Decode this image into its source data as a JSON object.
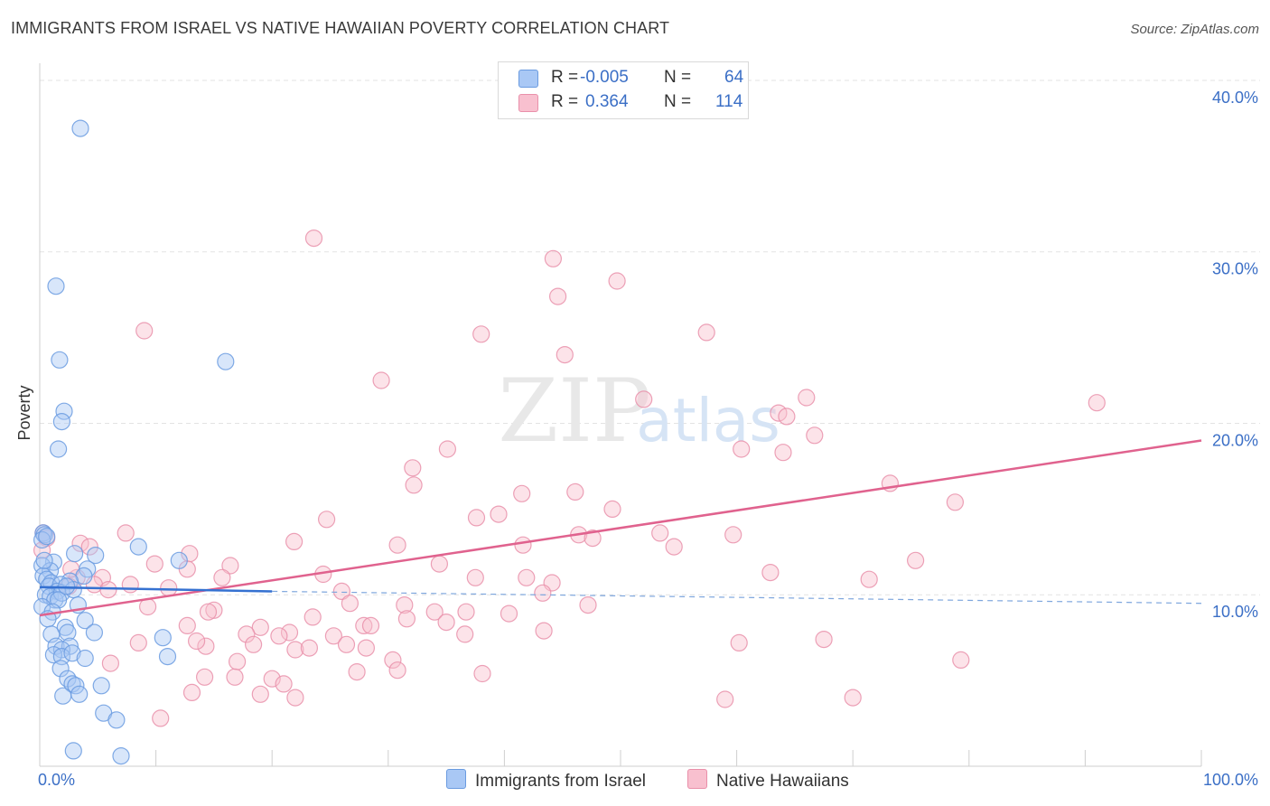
{
  "title": "IMMIGRANTS FROM ISRAEL VS NATIVE HAWAIIAN POVERTY CORRELATION CHART",
  "source": "Source: ZipAtlas.com",
  "watermark": {
    "zip": "ZIP",
    "atlas": "atlas"
  },
  "legend": {
    "rows": [
      {
        "r_label": "R = ",
        "r_value": "-0.005",
        "n_label": "N = ",
        "n_value": "64",
        "color": "#a9c8f5",
        "border": "#6a9be0"
      },
      {
        "r_label": "R = ",
        "r_value": " 0.364",
        "n_label": "N = ",
        "n_value": "114",
        "color": "#f8c0cf",
        "border": "#e990aa"
      }
    ]
  },
  "bottom_legend": [
    {
      "label": "Immigrants from Israel",
      "color": "#a9c8f5",
      "border": "#6a9be0"
    },
    {
      "label": "Native Hawaiians",
      "color": "#f8c0cf",
      "border": "#e990aa"
    }
  ],
  "chart_data": {
    "type": "scatter",
    "title": "IMMIGRANTS FROM ISRAEL VS NATIVE HAWAIIAN POVERTY CORRELATION CHART",
    "ylabel": "Poverty",
    "xlabel": "",
    "xlim": [
      0,
      100
    ],
    "ylim": [
      0,
      41
    ],
    "x_tick_labels": [
      "0.0%",
      "100.0%"
    ],
    "y_ticks": [
      10,
      20,
      30,
      40
    ],
    "y_tick_labels": [
      "10.0%",
      "20.0%",
      "30.0%",
      "40.0%"
    ],
    "grid": "horizontal-dashed",
    "series": [
      {
        "name": "Immigrants from Israel",
        "color": "#6a9be0",
        "fill": "#a9c8f5",
        "R": -0.005,
        "N": 64,
        "trend": {
          "x": [
            0,
            20
          ],
          "y": [
            10.45,
            10.2
          ],
          "dashed_to": [
            100,
            9.5
          ]
        },
        "points": [
          [
            3.5,
            37.2
          ],
          [
            1.4,
            28.0
          ],
          [
            1.7,
            23.7
          ],
          [
            16.0,
            23.6
          ],
          [
            2.1,
            20.7
          ],
          [
            1.9,
            20.1
          ],
          [
            1.6,
            18.5
          ],
          [
            0.3,
            13.6
          ],
          [
            0.4,
            13.5
          ],
          [
            0.2,
            13.2
          ],
          [
            0.6,
            13.4
          ],
          [
            8.5,
            12.8
          ],
          [
            3.0,
            12.4
          ],
          [
            4.8,
            12.3
          ],
          [
            12.0,
            12.0
          ],
          [
            1.2,
            11.9
          ],
          [
            0.2,
            11.7
          ],
          [
            0.9,
            11.4
          ],
          [
            0.3,
            11.1
          ],
          [
            4.1,
            11.5
          ],
          [
            0.6,
            10.9
          ],
          [
            3.8,
            11.1
          ],
          [
            1.0,
            10.7
          ],
          [
            0.8,
            10.5
          ],
          [
            2.6,
            10.8
          ],
          [
            1.8,
            10.6
          ],
          [
            1.5,
            10.2
          ],
          [
            0.5,
            10.0
          ],
          [
            0.9,
            9.9
          ],
          [
            1.3,
            9.7
          ],
          [
            1.9,
            10.1
          ],
          [
            2.9,
            10.3
          ],
          [
            1.6,
            9.7
          ],
          [
            0.2,
            9.3
          ],
          [
            1.1,
            9.0
          ],
          [
            3.3,
            9.4
          ],
          [
            0.7,
            8.6
          ],
          [
            3.9,
            8.5
          ],
          [
            2.2,
            8.1
          ],
          [
            2.4,
            7.8
          ],
          [
            4.7,
            7.8
          ],
          [
            1.0,
            7.7
          ],
          [
            10.6,
            7.5
          ],
          [
            1.4,
            7.0
          ],
          [
            2.6,
            7.0
          ],
          [
            1.9,
            6.8
          ],
          [
            1.2,
            6.5
          ],
          [
            1.9,
            6.4
          ],
          [
            2.8,
            6.6
          ],
          [
            3.9,
            6.3
          ],
          [
            11.0,
            6.4
          ],
          [
            1.8,
            5.7
          ],
          [
            2.4,
            5.1
          ],
          [
            2.8,
            4.8
          ],
          [
            3.1,
            4.7
          ],
          [
            5.3,
            4.7
          ],
          [
            3.4,
            4.2
          ],
          [
            2.0,
            4.1
          ],
          [
            5.5,
            3.1
          ],
          [
            6.6,
            2.7
          ],
          [
            2.9,
            0.9
          ],
          [
            7.0,
            0.6
          ],
          [
            2.3,
            10.5
          ],
          [
            0.4,
            12.0
          ]
        ]
      },
      {
        "name": "Native Hawaiians",
        "color": "#e990aa",
        "fill": "#f8c0cf",
        "R": 0.364,
        "N": 114,
        "trend": {
          "x": [
            0,
            100
          ],
          "y": [
            8.8,
            19.0
          ]
        },
        "points": [
          [
            23.6,
            30.8
          ],
          [
            44.2,
            29.6
          ],
          [
            49.7,
            28.3
          ],
          [
            44.6,
            27.4
          ],
          [
            9.0,
            25.4
          ],
          [
            38.0,
            25.2
          ],
          [
            57.4,
            25.3
          ],
          [
            45.2,
            24.0
          ],
          [
            29.4,
            22.5
          ],
          [
            52.0,
            21.4
          ],
          [
            66.0,
            21.5
          ],
          [
            91.0,
            21.2
          ],
          [
            63.6,
            20.6
          ],
          [
            64.3,
            20.4
          ],
          [
            66.7,
            19.3
          ],
          [
            35.1,
            18.5
          ],
          [
            60.4,
            18.5
          ],
          [
            64.0,
            18.3
          ],
          [
            32.1,
            17.4
          ],
          [
            32.2,
            16.4
          ],
          [
            73.2,
            16.5
          ],
          [
            41.5,
            15.9
          ],
          [
            46.1,
            16.0
          ],
          [
            78.8,
            15.4
          ],
          [
            49.3,
            15.0
          ],
          [
            37.6,
            14.5
          ],
          [
            39.5,
            14.7
          ],
          [
            24.7,
            14.4
          ],
          [
            7.4,
            13.6
          ],
          [
            0.3,
            13.6
          ],
          [
            0.6,
            13.3
          ],
          [
            53.4,
            13.6
          ],
          [
            46.4,
            13.5
          ],
          [
            59.7,
            13.5
          ],
          [
            47.6,
            13.3
          ],
          [
            3.5,
            13.0
          ],
          [
            4.3,
            12.8
          ],
          [
            21.9,
            13.1
          ],
          [
            30.8,
            12.9
          ],
          [
            41.6,
            12.9
          ],
          [
            54.6,
            12.8
          ],
          [
            12.9,
            12.4
          ],
          [
            16.4,
            11.7
          ],
          [
            9.9,
            11.8
          ],
          [
            75.4,
            12.0
          ],
          [
            34.4,
            11.8
          ],
          [
            12.7,
            11.5
          ],
          [
            24.4,
            11.2
          ],
          [
            62.9,
            11.3
          ],
          [
            5.4,
            11.0
          ],
          [
            15.7,
            11.0
          ],
          [
            3.2,
            11.0
          ],
          [
            41.9,
            11.0
          ],
          [
            71.4,
            10.9
          ],
          [
            37.5,
            11.0
          ],
          [
            44.1,
            10.7
          ],
          [
            7.8,
            10.6
          ],
          [
            2.5,
            10.5
          ],
          [
            4.7,
            10.6
          ],
          [
            26.0,
            10.2
          ],
          [
            43.3,
            10.1
          ],
          [
            11.1,
            10.4
          ],
          [
            5.9,
            10.3
          ],
          [
            26.7,
            9.5
          ],
          [
            15.0,
            9.1
          ],
          [
            31.4,
            9.4
          ],
          [
            34.0,
            9.0
          ],
          [
            9.3,
            9.3
          ],
          [
            14.5,
            9.0
          ],
          [
            36.7,
            9.0
          ],
          [
            47.2,
            9.4
          ],
          [
            40.4,
            8.9
          ],
          [
            23.5,
            8.7
          ],
          [
            31.6,
            8.6
          ],
          [
            35.0,
            8.4
          ],
          [
            12.7,
            8.2
          ],
          [
            19.0,
            8.1
          ],
          [
            27.9,
            8.2
          ],
          [
            28.5,
            8.2
          ],
          [
            43.4,
            7.9
          ],
          [
            17.8,
            7.7
          ],
          [
            21.5,
            7.8
          ],
          [
            20.6,
            7.6
          ],
          [
            25.3,
            7.6
          ],
          [
            36.6,
            7.7
          ],
          [
            8.5,
            7.2
          ],
          [
            14.3,
            7.0
          ],
          [
            18.4,
            7.1
          ],
          [
            26.4,
            7.1
          ],
          [
            28.1,
            6.9
          ],
          [
            60.2,
            7.2
          ],
          [
            67.5,
            7.4
          ],
          [
            22.0,
            6.8
          ],
          [
            23.2,
            6.9
          ],
          [
            30.4,
            6.2
          ],
          [
            6.1,
            6.0
          ],
          [
            17.0,
            6.1
          ],
          [
            16.8,
            5.2
          ],
          [
            14.2,
            5.2
          ],
          [
            20.0,
            5.1
          ],
          [
            27.3,
            5.5
          ],
          [
            30.8,
            5.6
          ],
          [
            38.1,
            5.4
          ],
          [
            19.0,
            4.2
          ],
          [
            21.0,
            4.8
          ],
          [
            59.0,
            3.9
          ],
          [
            10.4,
            2.8
          ],
          [
            79.3,
            6.2
          ],
          [
            13.1,
            4.3
          ],
          [
            70.0,
            4.0
          ],
          [
            22.0,
            4.0
          ],
          [
            13.5,
            7.3
          ],
          [
            2.7,
            11.5
          ],
          [
            0.2,
            12.6
          ]
        ]
      }
    ]
  }
}
